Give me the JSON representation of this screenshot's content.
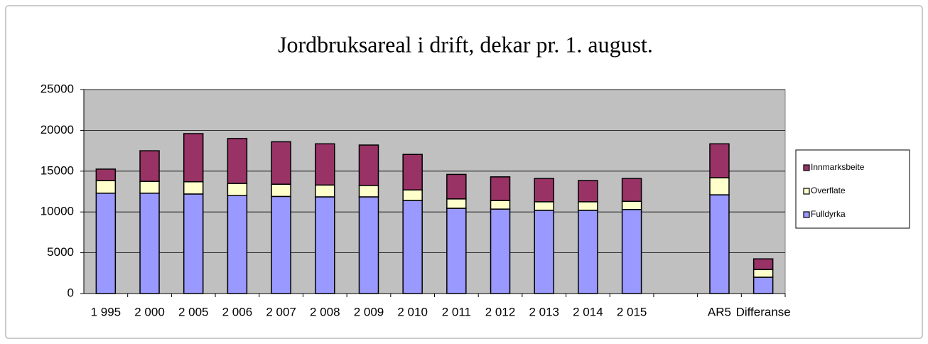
{
  "chart_data": {
    "type": "stacked_bar",
    "title": "Jordbruksareal i drift, dekar pr. 1. august.",
    "categories": [
      "1 995",
      "2 000",
      "2 005",
      "2 006",
      "2 007",
      "2 008",
      "2 009",
      "2 010",
      "2 011",
      "2 012",
      "2 013",
      "2 014",
      "2 015",
      null,
      "AR5",
      "Differanse"
    ],
    "series": [
      {
        "name": "Fulldyrka",
        "color": "#9999ff",
        "values": [
          12300,
          12300,
          12200,
          12000,
          11900,
          11850,
          11850,
          11400,
          10450,
          10350,
          10200,
          10200,
          10300,
          null,
          12100,
          2000
        ]
      },
      {
        "name": "Overflate",
        "color": "#ffffcc",
        "values": [
          1550,
          1450,
          1500,
          1500,
          1500,
          1450,
          1400,
          1300,
          1150,
          1050,
          1050,
          1050,
          1000,
          null,
          2100,
          950
        ]
      },
      {
        "name": "Innmarksbeite",
        "color": "#993366",
        "values": [
          1400,
          3750,
          5900,
          5500,
          5200,
          5050,
          4950,
          4350,
          3000,
          2900,
          2850,
          2600,
          2800,
          null,
          4150,
          1300
        ]
      }
    ],
    "ylim": [
      0,
      25000
    ],
    "yticks": [
      0,
      5000,
      10000,
      15000,
      20000,
      25000
    ],
    "grid": true,
    "legend": "right"
  }
}
